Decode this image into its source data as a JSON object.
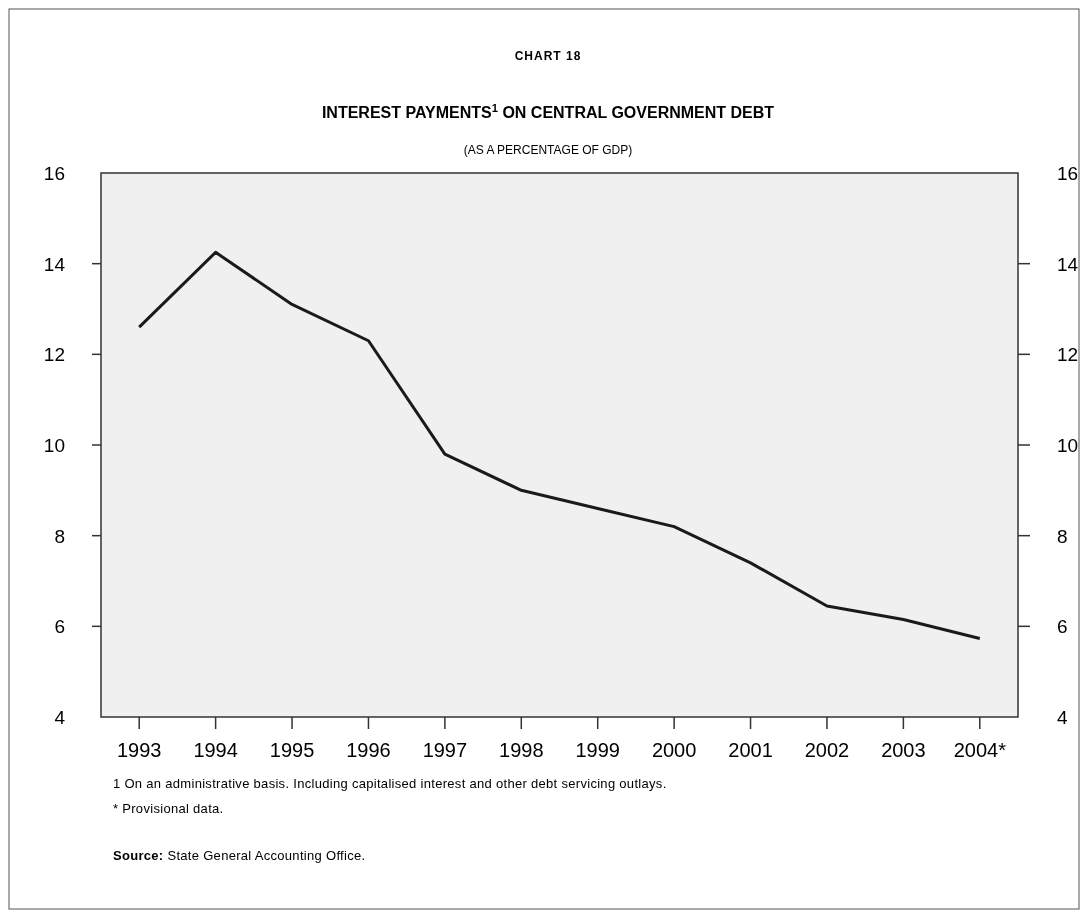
{
  "chart_data": {
    "type": "line",
    "title": "INTEREST PAYMENTS$^{1}$ ON CENTRAL GOVERNMENT DEBT",
    "subtitle": "(AS A PERCENTAGE OF GDP)",
    "categories": [
      "1993",
      "1994",
      "1995",
      "1996",
      "1997",
      "1998",
      "1999",
      "2000",
      "2001",
      "2002",
      "2003",
      "2004*"
    ],
    "series": [
      {
        "color": "#1a1a1a",
        "values": [
          12.6,
          14.25,
          13.1,
          12.3,
          9.8,
          9.0,
          8.6,
          8.2,
          7.4,
          6.45,
          6.15,
          5.73
        ]
      }
    ],
    "ylim": [
      4,
      16
    ],
    "yticks": [
      4,
      6,
      8,
      10,
      12,
      14,
      16
    ],
    "y2lim": [
      4,
      16
    ],
    "y2ticks": [
      4,
      6,
      8,
      10,
      12,
      14,
      16
    ],
    "grid": false,
    "marker": "none",
    "line_style": "solid",
    "annotations": [
      "CHART 18",
      "1 On an administrative basis. Including capitalised interest and other debt servicing outlays.",
      "*  Provisional data.",
      "Source: State General Accounting Office."
    ]
  }
}
